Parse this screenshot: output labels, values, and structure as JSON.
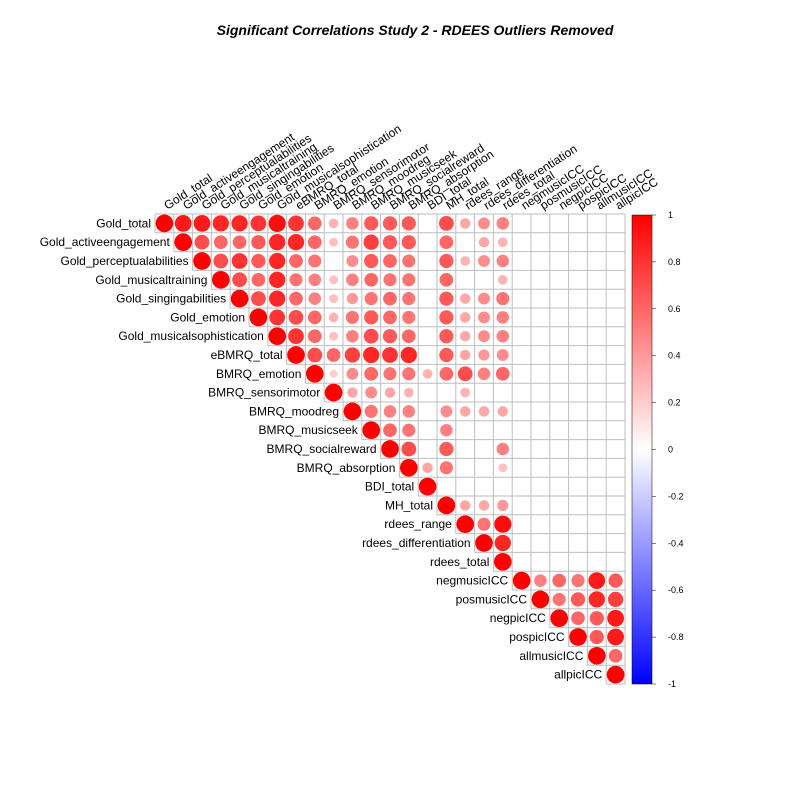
{
  "chart_data": {
    "type": "heatmap",
    "style": "upper-triangle circle correlation plot",
    "title": "Significant Correlations Study 2 - RDEES Outliers Removed",
    "variables": [
      "Gold_total",
      "Gold_activeengagement",
      "Gold_perceptualabilities",
      "Gold_musicaltraining",
      "Gold_singingabilities",
      "Gold_emotion",
      "Gold_musicalsophistication",
      "eBMRQ_total",
      "BMRQ_emotion",
      "BMRQ_sensorimotor",
      "BMRQ_moodreg",
      "BMRQ_musicseek",
      "BMRQ_socialreward",
      "BMRQ_absorption",
      "BDI_total",
      "MH_total",
      "rdees_range",
      "rdees_differentiation",
      "rdees_total",
      "negmusicICC",
      "posmusicICC",
      "negpicICC",
      "pospicICC",
      "allmusicICC",
      "allpicICC"
    ],
    "cells": [
      [
        0,
        0,
        1
      ],
      [
        0,
        1,
        0.9
      ],
      [
        0,
        2,
        0.9
      ],
      [
        0,
        3,
        0.85
      ],
      [
        0,
        4,
        0.85
      ],
      [
        0,
        5,
        0.8
      ],
      [
        0,
        6,
        0.95
      ],
      [
        0,
        7,
        0.8
      ],
      [
        0,
        8,
        0.6
      ],
      [
        0,
        9,
        0.3
      ],
      [
        0,
        10,
        0.5
      ],
      [
        0,
        11,
        0.65
      ],
      [
        0,
        12,
        0.65
      ],
      [
        0,
        13,
        0.65
      ],
      [
        0,
        15,
        0.7
      ],
      [
        0,
        16,
        0.35
      ],
      [
        0,
        17,
        0.45
      ],
      [
        0,
        18,
        0.5
      ],
      [
        1,
        1,
        1
      ],
      [
        1,
        2,
        0.7
      ],
      [
        1,
        3,
        0.6
      ],
      [
        1,
        4,
        0.6
      ],
      [
        1,
        5,
        0.65
      ],
      [
        1,
        6,
        0.85
      ],
      [
        1,
        7,
        0.85
      ],
      [
        1,
        8,
        0.6
      ],
      [
        1,
        9,
        0.25
      ],
      [
        1,
        10,
        0.55
      ],
      [
        1,
        11,
        0.75
      ],
      [
        1,
        12,
        0.65
      ],
      [
        1,
        13,
        0.65
      ],
      [
        1,
        15,
        0.6
      ],
      [
        1,
        17,
        0.35
      ],
      [
        1,
        18,
        0.3
      ],
      [
        2,
        2,
        1
      ],
      [
        2,
        3,
        0.7
      ],
      [
        2,
        4,
        0.8
      ],
      [
        2,
        5,
        0.65
      ],
      [
        2,
        6,
        0.85
      ],
      [
        2,
        7,
        0.6
      ],
      [
        2,
        8,
        0.55
      ],
      [
        2,
        10,
        0.45
      ],
      [
        2,
        11,
        0.65
      ],
      [
        2,
        12,
        0.6
      ],
      [
        2,
        13,
        0.55
      ],
      [
        2,
        15,
        0.65
      ],
      [
        2,
        16,
        0.3
      ],
      [
        2,
        17,
        0.45
      ],
      [
        2,
        18,
        0.5
      ],
      [
        3,
        3,
        1
      ],
      [
        3,
        4,
        0.7
      ],
      [
        3,
        5,
        0.6
      ],
      [
        3,
        6,
        0.85
      ],
      [
        3,
        7,
        0.55
      ],
      [
        3,
        8,
        0.5
      ],
      [
        3,
        9,
        0.25
      ],
      [
        3,
        10,
        0.5
      ],
      [
        3,
        11,
        0.6
      ],
      [
        3,
        12,
        0.55
      ],
      [
        3,
        13,
        0.55
      ],
      [
        3,
        15,
        0.6
      ],
      [
        3,
        18,
        0.3
      ],
      [
        4,
        4,
        1
      ],
      [
        4,
        5,
        0.7
      ],
      [
        4,
        6,
        0.85
      ],
      [
        4,
        7,
        0.6
      ],
      [
        4,
        8,
        0.5
      ],
      [
        4,
        9,
        0.25
      ],
      [
        4,
        10,
        0.4
      ],
      [
        4,
        11,
        0.55
      ],
      [
        4,
        12,
        0.6
      ],
      [
        4,
        13,
        0.55
      ],
      [
        4,
        15,
        0.65
      ],
      [
        4,
        16,
        0.35
      ],
      [
        4,
        17,
        0.45
      ],
      [
        4,
        18,
        0.55
      ],
      [
        5,
        5,
        1
      ],
      [
        5,
        6,
        0.8
      ],
      [
        5,
        7,
        0.7
      ],
      [
        5,
        8,
        0.6
      ],
      [
        5,
        9,
        0.3
      ],
      [
        5,
        10,
        0.55
      ],
      [
        5,
        11,
        0.65
      ],
      [
        5,
        12,
        0.6
      ],
      [
        5,
        13,
        0.55
      ],
      [
        5,
        15,
        0.65
      ],
      [
        5,
        16,
        0.35
      ],
      [
        5,
        17,
        0.45
      ],
      [
        5,
        18,
        0.5
      ],
      [
        6,
        6,
        1
      ],
      [
        6,
        7,
        0.8
      ],
      [
        6,
        8,
        0.6
      ],
      [
        6,
        9,
        0.25
      ],
      [
        6,
        10,
        0.5
      ],
      [
        6,
        11,
        0.7
      ],
      [
        6,
        12,
        0.65
      ],
      [
        6,
        13,
        0.6
      ],
      [
        6,
        15,
        0.65
      ],
      [
        6,
        16,
        0.35
      ],
      [
        6,
        17,
        0.45
      ],
      [
        6,
        18,
        0.5
      ],
      [
        7,
        7,
        1
      ],
      [
        7,
        8,
        0.7
      ],
      [
        7,
        9,
        0.6
      ],
      [
        7,
        10,
        0.75
      ],
      [
        7,
        11,
        0.85
      ],
      [
        7,
        12,
        0.8
      ],
      [
        7,
        13,
        0.85
      ],
      [
        7,
        15,
        0.65
      ],
      [
        7,
        16,
        0.35
      ],
      [
        7,
        17,
        0.4
      ],
      [
        7,
        18,
        0.45
      ],
      [
        8,
        8,
        1
      ],
      [
        8,
        9,
        0.2
      ],
      [
        8,
        10,
        0.45
      ],
      [
        8,
        11,
        0.6
      ],
      [
        8,
        12,
        0.55
      ],
      [
        8,
        13,
        0.55
      ],
      [
        8,
        14,
        0.3
      ],
      [
        8,
        15,
        0.6
      ],
      [
        8,
        16,
        0.7
      ],
      [
        8,
        17,
        0.5
      ],
      [
        8,
        18,
        0.6
      ],
      [
        9,
        9,
        1
      ],
      [
        9,
        10,
        0.35
      ],
      [
        9,
        11,
        0.45
      ],
      [
        9,
        12,
        0.35
      ],
      [
        9,
        13,
        0.3
      ],
      [
        9,
        16,
        0.3
      ],
      [
        10,
        10,
        1
      ],
      [
        10,
        11,
        0.55
      ],
      [
        10,
        12,
        0.5
      ],
      [
        10,
        13,
        0.5
      ],
      [
        10,
        15,
        0.45
      ],
      [
        10,
        16,
        0.35
      ],
      [
        10,
        17,
        0.35
      ],
      [
        10,
        18,
        0.35
      ],
      [
        11,
        11,
        1
      ],
      [
        11,
        12,
        0.6
      ],
      [
        11,
        13,
        0.55
      ],
      [
        11,
        15,
        0.5
      ],
      [
        12,
        12,
        1
      ],
      [
        12,
        13,
        0.7
      ],
      [
        12,
        15,
        0.65
      ],
      [
        12,
        18,
        0.5
      ],
      [
        13,
        13,
        1
      ],
      [
        13,
        14,
        0.35
      ],
      [
        13,
        15,
        0.55
      ],
      [
        13,
        18,
        0.25
      ],
      [
        14,
        14,
        1
      ],
      [
        15,
        15,
        1
      ],
      [
        15,
        16,
        0.35
      ],
      [
        15,
        17,
        0.35
      ],
      [
        15,
        18,
        0.4
      ],
      [
        16,
        16,
        1
      ],
      [
        16,
        17,
        0.55
      ],
      [
        16,
        18,
        0.95
      ],
      [
        17,
        17,
        1
      ],
      [
        17,
        18,
        0.85
      ],
      [
        18,
        18,
        1
      ],
      [
        19,
        19,
        1
      ],
      [
        19,
        20,
        0.5
      ],
      [
        19,
        21,
        0.6
      ],
      [
        19,
        22,
        0.55
      ],
      [
        19,
        23,
        0.9
      ],
      [
        19,
        24,
        0.65
      ],
      [
        20,
        20,
        1
      ],
      [
        20,
        21,
        0.55
      ],
      [
        20,
        22,
        0.65
      ],
      [
        20,
        23,
        0.85
      ],
      [
        20,
        24,
        0.75
      ],
      [
        21,
        21,
        1
      ],
      [
        21,
        22,
        0.6
      ],
      [
        21,
        23,
        0.65
      ],
      [
        21,
        24,
        0.9
      ],
      [
        22,
        22,
        1
      ],
      [
        22,
        23,
        0.65
      ],
      [
        22,
        24,
        0.9
      ],
      [
        23,
        23,
        1
      ],
      [
        23,
        24,
        0.6
      ],
      [
        24,
        24,
        1
      ]
    ],
    "colorbar": {
      "range": [
        -1,
        1
      ],
      "ticks": [
        "1",
        "0.8",
        "0.6",
        "0.4",
        "0.2",
        "0",
        "-0.2",
        "-0.4",
        "-0.6",
        "-0.8",
        "-1"
      ],
      "colors": {
        "negative": "#0000ff",
        "zero": "#ffffff",
        "positive": "#ff0000"
      }
    },
    "grid": true
  }
}
